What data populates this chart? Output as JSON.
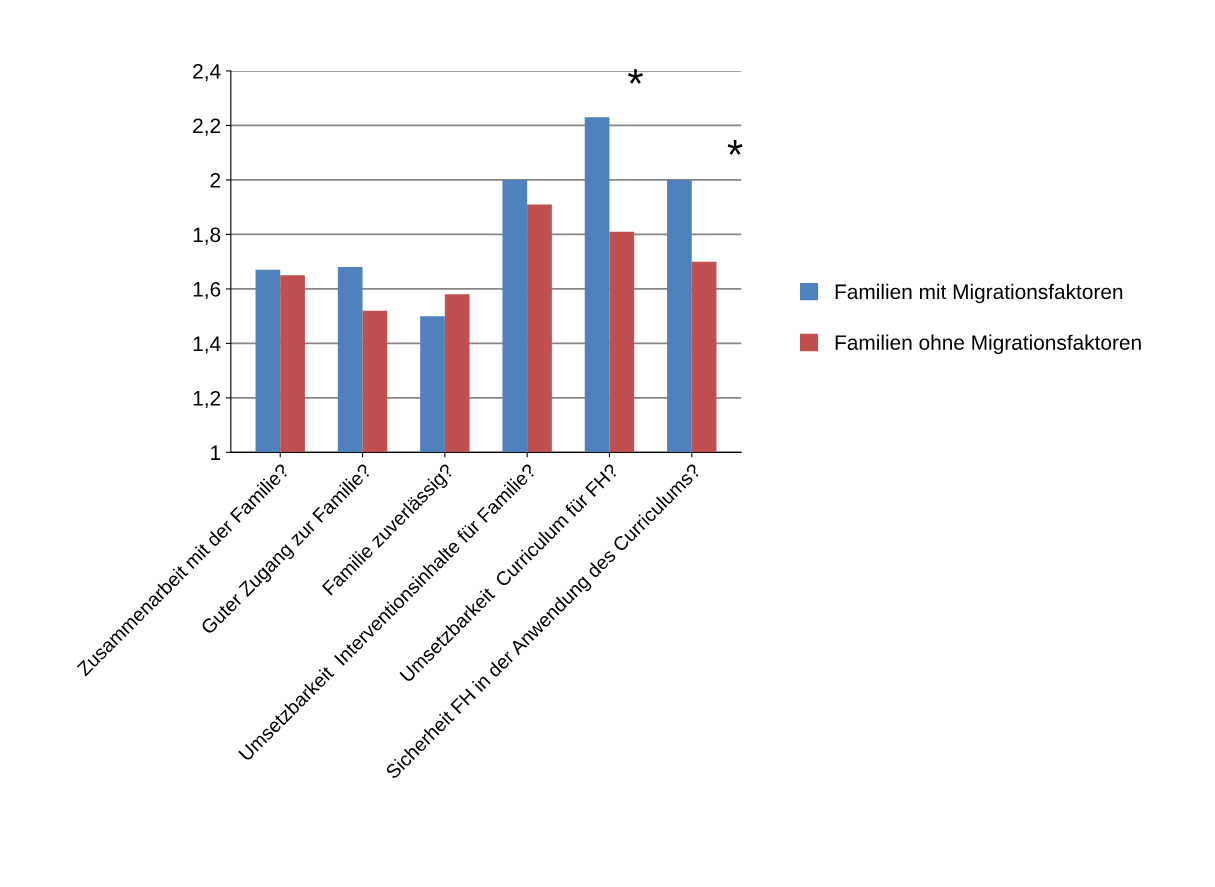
{
  "chart_data": {
    "type": "bar",
    "categories": [
      "Zusammenarbeit mit der Familie?",
      "Guter Zugang zur Familie?",
      "Familie zuverlässig?",
      "Umsetzbarkeit  Interventionsinhalte für Familie?",
      "Umsetzbarkeit  Curriculum für FH?",
      "Sicherheit FH in der Anwendung des Curriculums?"
    ],
    "series": [
      {
        "name": "Familien mit Migrationsfaktoren",
        "color": "#4f81bd",
        "values": [
          1.67,
          1.68,
          1.5,
          2.0,
          2.23,
          2.0
        ]
      },
      {
        "name": "Familien ohne Migrationsfaktoren",
        "color": "#c0504d",
        "values": [
          1.65,
          1.52,
          1.58,
          1.91,
          1.81,
          1.7
        ]
      }
    ],
    "ylim": [
      1,
      2.4
    ],
    "yticks": [
      {
        "value": 1,
        "label": "1"
      },
      {
        "value": 1.2,
        "label": "1,2"
      },
      {
        "value": 1.4,
        "label": "1,4"
      },
      {
        "value": 1.6,
        "label": "1,6"
      },
      {
        "value": 1.8,
        "label": "1,8"
      },
      {
        "value": 2,
        "label": "2"
      },
      {
        "value": 2.2,
        "label": "2,2"
      },
      {
        "value": 2.4,
        "label": "2,4"
      }
    ],
    "grid": "y",
    "legend": "right",
    "annotations": [
      "*",
      "*"
    ]
  }
}
